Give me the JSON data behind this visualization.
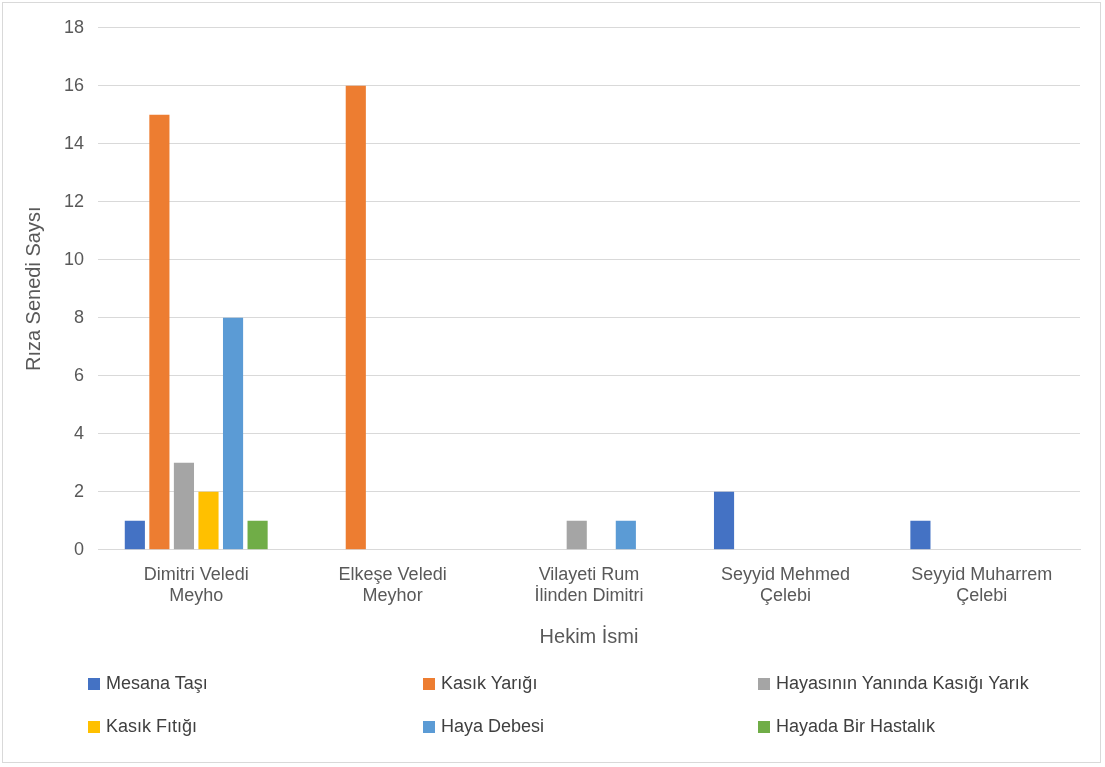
{
  "chart_data": {
    "type": "bar",
    "xlabel": "Hekim İsmi",
    "ylabel": "Rıza Senedi Saysı",
    "categories": [
      "Dimitri Veledi Meyho",
      "Elkeşe Veledi Meyhor",
      "Vilayeti Rum İlinden Dimitri",
      "Seyyid Mehmed Çelebi",
      "Seyyid Muharrem Çelebi"
    ],
    "series": [
      {
        "name": "Mesana Taşı",
        "color": "#4472c4",
        "values": [
          1,
          null,
          null,
          2,
          1
        ]
      },
      {
        "name": "Kasık Yarığı",
        "color": "#ed7d31",
        "values": [
          15,
          16,
          null,
          null,
          null
        ]
      },
      {
        "name": "Hayasının Yanında Kasığı Yarık",
        "color": "#a5a5a5",
        "values": [
          3,
          null,
          1,
          null,
          null
        ]
      },
      {
        "name": "Kasık Fıtığı",
        "color": "#ffc000",
        "values": [
          2,
          null,
          null,
          null,
          null
        ]
      },
      {
        "name": "Haya Debesi",
        "color": "#5b9bd5",
        "values": [
          8,
          null,
          1,
          null,
          null
        ]
      },
      {
        "name": "Hayada Bir Hastalık",
        "color": "#70ad47",
        "values": [
          1,
          null,
          null,
          null,
          null
        ]
      }
    ],
    "ylim": [
      0,
      18
    ],
    "yticks": [
      0,
      2,
      4,
      6,
      8,
      10,
      12,
      14,
      16,
      18
    ],
    "grid": "y",
    "legend": "bottom"
  }
}
